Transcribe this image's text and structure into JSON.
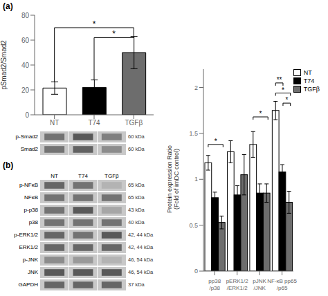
{
  "chart_data": [
    {
      "type": "bar",
      "title": "(a)",
      "categories": [
        "NT",
        "T74",
        "TGFβ"
      ],
      "values": [
        21.5,
        22.0,
        50.0
      ],
      "errors": [
        5.0,
        6.0,
        13.0
      ],
      "colors": [
        "white",
        "black",
        "#6d6d6d"
      ],
      "ylabel": "pSmad2/Smad2",
      "ylim": [
        0,
        80
      ],
      "yticks": [
        0,
        20,
        40,
        60,
        80
      ],
      "grid": false,
      "annotations": [
        {
          "text": "*",
          "from": "NT",
          "to": "TGFβ",
          "y": 70
        },
        {
          "text": "*",
          "from": "T74",
          "to": "TGFβ",
          "y": 62
        }
      ]
    },
    {
      "type": "heatmap",
      "categories": [
        null,
        null,
        null
      ],
      "rows": [
        "p-Smad2",
        "Smad2"
      ],
      "kda": [
        "60 kDa",
        "60 kDa"
      ],
      "cells": [
        [
          0.55,
          0.65,
          0.5
        ],
        [
          0.55,
          0.62,
          0.45
        ]
      ],
      "color": "#c8c8c8"
    },
    {
      "type": "heatmap",
      "title": "(b)",
      "categories": [
        "NT",
        "T74",
        "TGFβ"
      ],
      "rows": [
        "p-NFκB",
        "NFκB",
        "p-p38",
        "p38",
        "p-ERK1/2",
        "ERK1/2",
        "p-JNK",
        "JNK",
        "GAPDH"
      ],
      "kda": [
        "65 kDa",
        "65 kDa",
        "43 kDa",
        "40 kDa",
        "42, 44 kDa",
        "42, 44 kDa",
        "46, 54 kDa",
        "46, 54 kDa",
        "37 kDa"
      ],
      "cells": [
        [
          0.6,
          0.55,
          0.3
        ],
        [
          0.55,
          0.55,
          0.55
        ],
        [
          0.55,
          0.65,
          0.35
        ],
        [
          0.55,
          0.55,
          0.55
        ],
        [
          0.6,
          0.55,
          0.65
        ],
        [
          0.6,
          0.6,
          0.6
        ],
        [
          0.45,
          0.4,
          0.3
        ],
        [
          0.65,
          0.65,
          0.65
        ],
        [
          0.6,
          0.6,
          0.6
        ]
      ],
      "color": "#c8c8c8"
    },
    {
      "type": "bar",
      "categories": [
        "pp38\n/p38",
        "pERK1/2\n/ERK1/2",
        "pJNK\n/JNK",
        "NF-κB pp65\n/p65"
      ],
      "series": [
        {
          "name": "NT",
          "color": "white",
          "values": [
            1.18,
            1.3,
            1.38,
            1.75
          ],
          "errors": [
            0.08,
            0.12,
            0.14,
            0.1
          ]
        },
        {
          "name": "T74",
          "color": "black",
          "values": [
            0.8,
            0.83,
            0.85,
            1.08
          ],
          "errors": [
            0.06,
            0.1,
            0.1,
            0.08
          ]
        },
        {
          "name": "TGFβ",
          "color": "#6d6d6d",
          "values": [
            0.53,
            1.05,
            0.85,
            0.75
          ],
          "errors": [
            0.07,
            0.22,
            0.1,
            0.12
          ]
        }
      ],
      "ylabel": "Protein expression Ratio\n(Fold of imDC control)",
      "ylim": [
        0,
        2.2
      ],
      "yticks": [
        0,
        0.5,
        1,
        1.5,
        2
      ],
      "grid": false,
      "legend": "upper right",
      "annotations": [
        {
          "text": "*",
          "category": "pp38\n/p38",
          "from": "NT",
          "to": "TGFβ",
          "y": 1.38
        },
        {
          "text": "*",
          "category": "pJNK\n/JNK",
          "from": "NT",
          "to": "TGFβ",
          "y": 1.68
        },
        {
          "text": "**",
          "category": "NF-κB pp65\n/p65",
          "from": "NT",
          "to": "T74",
          "y": 2.05
        },
        {
          "text": "*",
          "category": "NF-κB pp65\n/p65",
          "from": "NT",
          "to": "TGFβ",
          "y": 1.94
        },
        {
          "text": "*",
          "category": "NF-κB pp65\n/p65",
          "from": "T74",
          "to": "TGFβ",
          "y": 1.83
        }
      ]
    }
  ]
}
